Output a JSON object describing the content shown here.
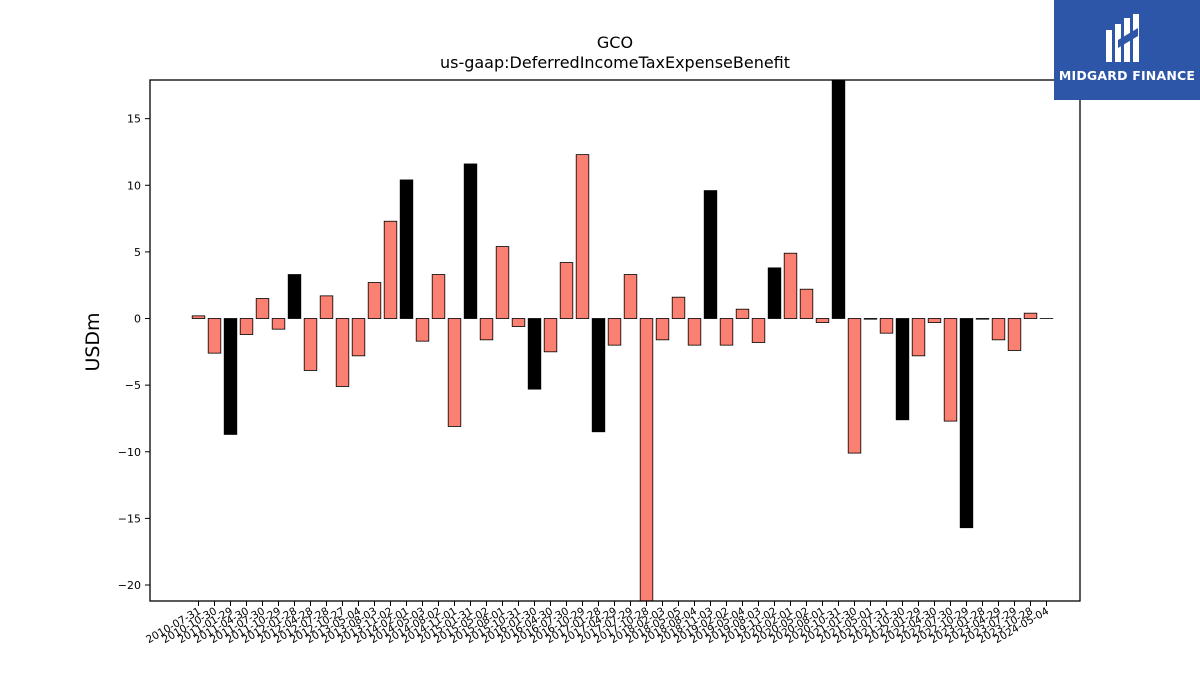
{
  "brand": {
    "name": "MIDGARD FINANCE",
    "colors": {
      "background": "#2e56a8",
      "foreground": "#ffffff"
    }
  },
  "chart_data": {
    "type": "bar",
    "title": "GCO",
    "subtitle": "us-gaap:DeferredIncomeTaxExpenseBenefit",
    "ylabel": "USDm",
    "xlabel": "",
    "ylim": [
      -21.2,
      17.9
    ],
    "yticks": [
      -20,
      -15,
      -10,
      -5,
      0,
      5,
      10,
      15
    ],
    "grid": false,
    "colors": {
      "quarterly": "#fa8072",
      "annual": "#000000",
      "edge": "#000000"
    },
    "categories": [
      "2010-07-31",
      "2010-10-30",
      "2011-01-29",
      "2011-04-30",
      "2011-07-30",
      "2011-10-29",
      "2012-01-28",
      "2012-04-28",
      "2012-07-28",
      "2012-10-27",
      "2013-05-04",
      "2013-08-03",
      "2013-11-02",
      "2014-02-01",
      "2014-05-03",
      "2014-08-02",
      "2014-11-01",
      "2015-01-31",
      "2015-05-02",
      "2015-08-01",
      "2015-10-31",
      "2016-01-30",
      "2016-04-30",
      "2016-07-30",
      "2016-10-29",
      "2017-01-28",
      "2017-04-29",
      "2017-07-29",
      "2017-10-28",
      "2018-02-03",
      "2018-05-05",
      "2018-08-04",
      "2018-11-03",
      "2019-02-02",
      "2019-05-04",
      "2019-08-03",
      "2019-11-02",
      "2020-02-01",
      "2020-05-02",
      "2020-08-01",
      "2020-10-31",
      "2021-01-30",
      "2021-05-01",
      "2021-07-31",
      "2021-10-30",
      "2022-01-29",
      "2022-04-30",
      "2022-07-30",
      "2022-10-29",
      "2023-01-28",
      "2023-04-29",
      "2023-07-29",
      "2023-10-28",
      "2024-05-04"
    ],
    "series": [
      {
        "values": [
          0.2,
          -2.6,
          -8.7,
          -1.2,
          1.5,
          -0.8,
          3.3,
          -3.9,
          1.7,
          -5.1,
          -2.8,
          2.7,
          7.3,
          10.4,
          -1.7,
          3.3,
          -8.1,
          11.6,
          -1.6,
          5.4,
          -0.6,
          -5.3,
          -2.5,
          4.2,
          12.3,
          -8.5,
          -2.0,
          3.3,
          -21.2,
          -1.6,
          1.6,
          -2.0,
          9.6,
          -2.0,
          0.7,
          -1.8,
          3.8,
          4.9,
          2.2,
          -0.3,
          17.9,
          -10.1,
          -0.05,
          -1.1,
          -7.6,
          -2.8,
          -0.3,
          -7.7,
          -15.7,
          -0.05,
          -1.6,
          -2.4,
          0.4,
          0
        ],
        "kinds": [
          "q",
          "q",
          "a",
          "q",
          "q",
          "q",
          "a",
          "q",
          "q",
          "q",
          "q",
          "q",
          "q",
          "a",
          "q",
          "q",
          "q",
          "a",
          "q",
          "q",
          "q",
          "a",
          "q",
          "q",
          "q",
          "a",
          "q",
          "q",
          "q",
          "q",
          "q",
          "q",
          "a",
          "q",
          "q",
          "q",
          "a",
          "q",
          "q",
          "q",
          "a",
          "q",
          "q",
          "q",
          "a",
          "q",
          "q",
          "q",
          "a",
          "q",
          "q",
          "q",
          "q",
          "q"
        ]
      }
    ]
  }
}
